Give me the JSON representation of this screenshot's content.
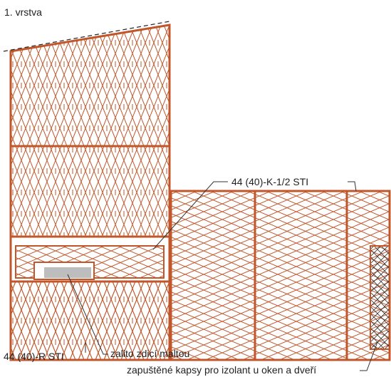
{
  "labels": {
    "layer": "1. vrstva",
    "corner_block": "44 (40)-K-1/2 STI",
    "r_block": "44 (40)-R STI",
    "mortar": "zalito zdicí maltou",
    "pockets": "zapuštěné kapsy pro izolant u oken a dveří"
  }
}
